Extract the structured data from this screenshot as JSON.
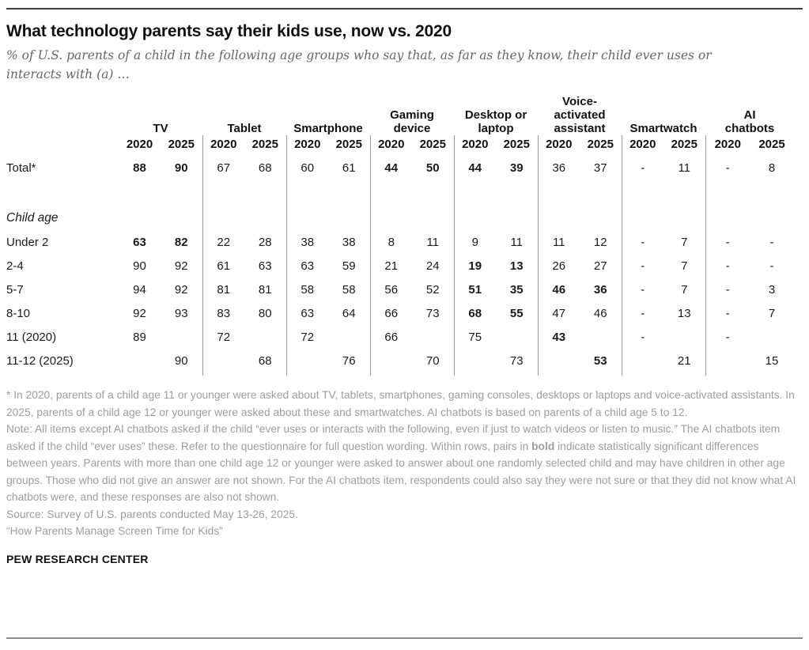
{
  "page": {
    "title": "What technology parents say their kids use, now vs. 2020",
    "subtitle": "% of U.S. parents of a child in the following age groups who say that, as far as they know, their child ever uses or interacts with (a) …"
  },
  "table": {
    "groups": [
      {
        "label": "TV",
        "lines": [
          "TV"
        ]
      },
      {
        "label": "Tablet",
        "lines": [
          "Tablet"
        ]
      },
      {
        "label": "Smartphone",
        "lines": [
          "Smartphone"
        ]
      },
      {
        "label": "Gaming device",
        "lines": [
          "Gaming",
          "device"
        ]
      },
      {
        "label": "Desktop or laptop",
        "lines": [
          "Desktop or",
          "laptop"
        ]
      },
      {
        "label": "Voice-activated assistant",
        "lines": [
          "Voice-",
          "activated",
          "assistant"
        ]
      },
      {
        "label": "Smartwatch",
        "lines": [
          "Smartwatch"
        ]
      },
      {
        "label": "AI chatbots",
        "lines": [
          "AI",
          "chatbots"
        ]
      }
    ],
    "years": [
      "2020",
      "2025"
    ],
    "rows": [
      {
        "label": "Total*",
        "kind": "total",
        "cells": [
          "88",
          "90",
          "67",
          "68",
          "60",
          "61",
          "44",
          "50",
          "44",
          "39",
          "36",
          "37",
          "-",
          "11",
          "-",
          "8"
        ],
        "bold": [
          1,
          1,
          0,
          0,
          0,
          0,
          1,
          1,
          1,
          1,
          0,
          0,
          0,
          0,
          0,
          0
        ]
      },
      {
        "label": "Child age",
        "kind": "section"
      },
      {
        "label": "Under 2",
        "kind": "data",
        "cells": [
          "63",
          "82",
          "22",
          "28",
          "38",
          "38",
          "8",
          "11",
          "9",
          "11",
          "11",
          "12",
          "-",
          "7",
          "-",
          "-"
        ],
        "bold": [
          1,
          1,
          0,
          0,
          0,
          0,
          0,
          0,
          0,
          0,
          0,
          0,
          0,
          0,
          0,
          0
        ]
      },
      {
        "label": "2-4",
        "kind": "data",
        "cells": [
          "90",
          "92",
          "61",
          "63",
          "63",
          "59",
          "21",
          "24",
          "19",
          "13",
          "26",
          "27",
          "-",
          "7",
          "-",
          "-"
        ],
        "bold": [
          0,
          0,
          0,
          0,
          0,
          0,
          0,
          0,
          1,
          1,
          0,
          0,
          0,
          0,
          0,
          0
        ]
      },
      {
        "label": "5-7",
        "kind": "data",
        "cells": [
          "94",
          "92",
          "81",
          "81",
          "58",
          "58",
          "56",
          "52",
          "51",
          "35",
          "46",
          "36",
          "-",
          "7",
          "-",
          "3"
        ],
        "bold": [
          0,
          0,
          0,
          0,
          0,
          0,
          0,
          0,
          1,
          1,
          1,
          1,
          0,
          0,
          0,
          0
        ]
      },
      {
        "label": "8-10",
        "kind": "data",
        "cells": [
          "92",
          "93",
          "83",
          "80",
          "63",
          "64",
          "66",
          "73",
          "68",
          "55",
          "47",
          "46",
          "-",
          "13",
          "-",
          "7"
        ],
        "bold": [
          0,
          0,
          0,
          0,
          0,
          0,
          0,
          0,
          1,
          1,
          0,
          0,
          0,
          0,
          0,
          0
        ]
      },
      {
        "label": "11 (2020)",
        "kind": "data",
        "cells": [
          "89",
          "",
          "72",
          "",
          "72",
          "",
          "66",
          "",
          "75",
          "",
          "43",
          "",
          "-",
          "",
          "-",
          ""
        ],
        "bold": [
          0,
          0,
          0,
          0,
          0,
          0,
          0,
          0,
          0,
          0,
          1,
          0,
          0,
          0,
          0,
          0
        ]
      },
      {
        "label": "11-12 (2025)",
        "kind": "data",
        "cells": [
          "",
          "90",
          "",
          "68",
          "",
          "76",
          "",
          "70",
          "",
          "73",
          "",
          "53",
          "",
          "21",
          "",
          "15"
        ],
        "bold": [
          0,
          0,
          0,
          0,
          0,
          0,
          0,
          0,
          0,
          0,
          0,
          1,
          0,
          0,
          0,
          0
        ]
      }
    ]
  },
  "footnotes": {
    "asterisk": "* In 2020, parents of a child age 11 or younger were asked about TV, tablets, smartphones, gaming consoles, desktops or laptops and voice-activated assistants. In 2025, parents of a child age 12 or younger were asked about these and smartwatches. AI chatbots is based on parents of a child age 5 to 12.",
    "note_before_bold": "Note: All items except AI chatbots asked if the child “ever uses or interacts with the following, even if just to watch videos or listen to music.” The AI chatbots item asked if the child “ever uses” these. Refer to the questionnaire for full question wording. Within rows, pairs in ",
    "bold_word": "bold",
    "note_after_bold": " indicate statistically significant differences between years. Parents with more than one child age 12 or younger were asked to answer about one randomly selected child and may have children in other age groups. Those who did not give an answer are not shown. For the AI chatbots item, respondents could also say they were not sure or that they did not know what AI chatbots were, and these responses are also not shown.",
    "source": "Source: Survey of U.S. parents conducted May 13-26, 2025.",
    "report": "“How Parents Manage Screen Time for Kids”"
  },
  "brand": "PEW RESEARCH CENTER"
}
